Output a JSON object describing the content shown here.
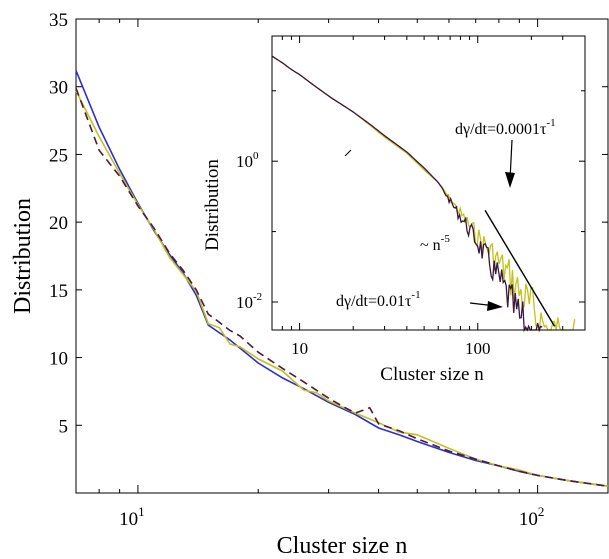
{
  "chart_data": [
    {
      "type": "line",
      "xlabel": "Cluster size n",
      "ylabel": "Distribution",
      "xscale": "log",
      "xlim": [
        7,
        150
      ],
      "ylim": [
        0,
        35
      ],
      "x_ticks": [
        10,
        100
      ],
      "x_tick_labels": [
        [
          "10",
          "1"
        ],
        [
          "10",
          "2"
        ]
      ],
      "y_ticks": [
        5,
        10,
        15,
        20,
        25,
        30,
        35
      ],
      "y_tick_labels": [
        "5",
        "10",
        "15",
        "20",
        "25",
        "30",
        "35"
      ],
      "series": [
        {
          "color": "#2b2bd9",
          "style": "solid",
          "x": [
            7,
            8,
            9,
            10,
            11,
            12,
            13,
            14,
            15,
            17,
            20,
            23,
            26,
            30,
            35,
            40,
            45,
            50,
            60,
            70,
            80,
            90,
            100,
            120,
            150
          ],
          "y": [
            31.2,
            27.0,
            23.9,
            21.4,
            19.3,
            17.6,
            16.2,
            14.6,
            12.4,
            11.3,
            9.6,
            8.5,
            7.7,
            6.7,
            5.8,
            4.8,
            4.3,
            3.8,
            3.0,
            2.4,
            2.0,
            1.6,
            1.3,
            0.9,
            0.5
          ]
        },
        {
          "color": "#c2c21a",
          "style": "solid",
          "x": [
            7,
            8,
            9,
            10,
            11,
            12,
            13,
            14,
            15,
            16,
            17,
            18,
            20,
            23,
            26,
            28,
            30,
            35,
            40,
            45,
            50,
            60,
            70,
            80,
            90,
            100,
            120,
            150
          ],
          "y": [
            29.7,
            26.3,
            23.6,
            21.3,
            19.4,
            17.4,
            16.1,
            14.9,
            12.5,
            12.2,
            11.0,
            10.8,
            9.9,
            9.0,
            7.6,
            7.4,
            6.8,
            5.9,
            5.2,
            4.5,
            4.3,
            3.3,
            2.5,
            2.0,
            1.7,
            1.3,
            0.9,
            0.5
          ]
        },
        {
          "color": "#4d1a3a",
          "style": "dashed",
          "x": [
            7,
            8,
            9,
            10,
            11,
            12,
            13,
            14,
            15,
            16,
            17,
            18,
            20,
            23,
            26,
            30,
            33,
            35,
            38,
            40,
            45,
            50,
            60,
            70,
            80,
            90,
            100,
            120,
            150
          ],
          "y": [
            29.9,
            25.3,
            23.4,
            21.2,
            19.5,
            17.7,
            16.4,
            15.0,
            13.2,
            12.6,
            12.0,
            11.6,
            10.4,
            9.2,
            8.2,
            7.0,
            6.3,
            5.9,
            6.3,
            5.1,
            4.6,
            4.0,
            3.1,
            2.5,
            2.0,
            1.6,
            1.3,
            0.9,
            0.5
          ]
        }
      ]
    },
    {
      "type": "line",
      "inset": true,
      "xlabel": "Cluster size n",
      "ylabel": "Distribution",
      "xscale": "log",
      "yscale": "log",
      "xlim": [
        7,
        400
      ],
      "ylim": [
        0.004,
        60
      ],
      "x_ticks": [
        10,
        100
      ],
      "x_tick_labels": [
        "10",
        "100"
      ],
      "y_ticks": [
        0.01,
        1
      ],
      "y_tick_labels": [
        [
          "10",
          "-2"
        ],
        [
          "10",
          "0"
        ]
      ],
      "annotations": [
        {
          "text": "dγ/dt=0.0001τ",
          "sup": "-1"
        },
        {
          "text": "dγ/dt=0.01τ",
          "sup": "-1"
        },
        {
          "text": "~ n",
          "sup": "-5"
        }
      ],
      "series": [
        {
          "color": "#c2c21a",
          "style": "solid",
          "x": [
            7,
            8,
            9,
            10,
            12,
            15,
            20,
            25,
            30,
            40,
            50,
            60,
            70,
            80,
            100,
            120,
            150,
            180,
            200,
            250,
            300,
            350
          ],
          "y": [
            31,
            25,
            20,
            17,
            12,
            8,
            5,
            3.2,
            2.2,
            1.3,
            0.75,
            0.5,
            0.32,
            0.22,
            0.12,
            0.08,
            0.045,
            0.025,
            0.018,
            0.01,
            0.007,
            0.006
          ]
        },
        {
          "color": "#3a1640",
          "style": "solid",
          "x": [
            7,
            8,
            9,
            10,
            12,
            15,
            20,
            25,
            30,
            40,
            50,
            60,
            70,
            80,
            100,
            120,
            140,
            160,
            180,
            200,
            230
          ],
          "y": [
            31,
            25,
            20,
            17,
            12,
            8,
            5,
            3.3,
            2.3,
            1.35,
            0.8,
            0.5,
            0.3,
            0.2,
            0.1,
            0.05,
            0.028,
            0.016,
            0.01,
            0.007,
            0.005
          ]
        },
        {
          "color": "#000000",
          "style": "solid",
          "x": [
            110,
            270
          ],
          "y": [
            0.2,
            0.0045
          ]
        }
      ]
    }
  ]
}
